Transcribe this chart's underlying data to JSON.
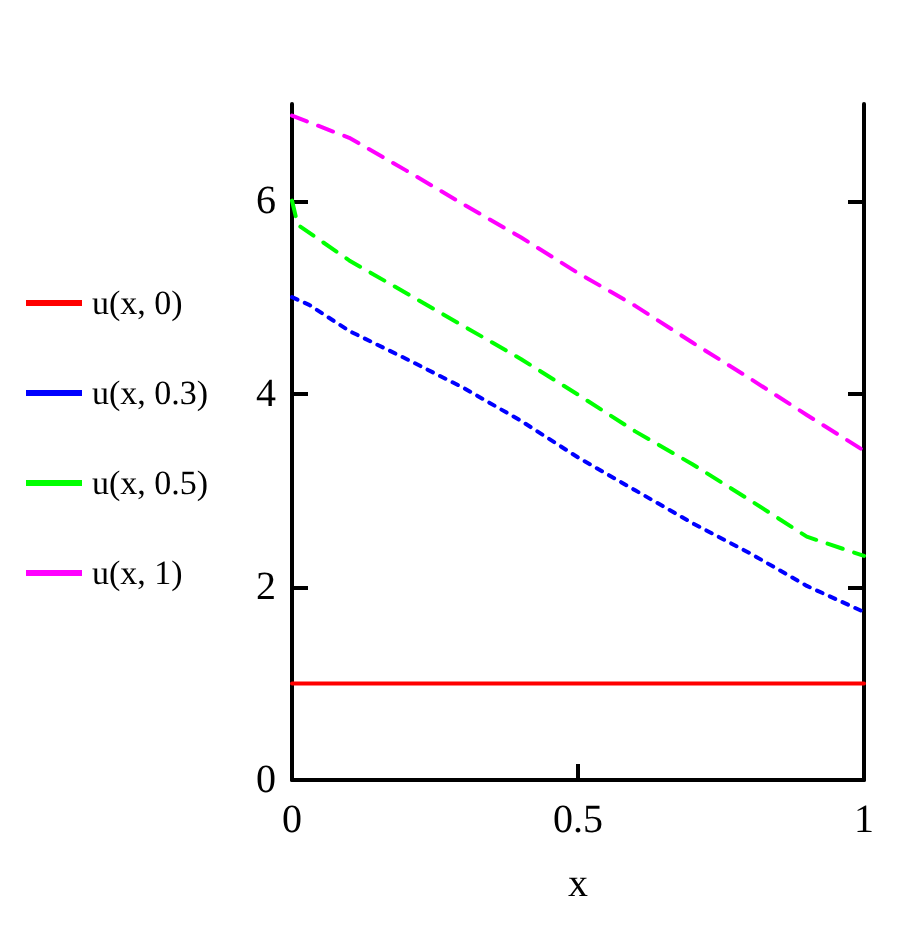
{
  "chart_data": {
    "type": "line",
    "xlabel": "x",
    "xlim": [
      0,
      1
    ],
    "xticks": [
      0,
      0.5,
      1
    ],
    "ylim": [
      0,
      7
    ],
    "yticks": [
      0,
      2,
      4,
      6
    ],
    "grid": false,
    "legend": "left",
    "marker": "none",
    "series": [
      {
        "name": "u(x, 0)",
        "color": "#ff0000",
        "line_style": "solid",
        "x": [
          0,
          1
        ],
        "values": [
          1,
          1
        ]
      },
      {
        "name": "u(x, 0.3)",
        "color": "#0000ff",
        "line_style": "dotted",
        "x": [
          0,
          0.03,
          0.1,
          0.2,
          0.3,
          0.4,
          0.5,
          0.6,
          0.7,
          0.8,
          0.9,
          1
        ],
        "values": [
          5.0,
          4.92,
          4.65,
          4.36,
          4.06,
          3.72,
          3.34,
          3.0,
          2.66,
          2.35,
          2.01,
          1.74
        ]
      },
      {
        "name": "u(x, 0.5)",
        "color": "#00ff00",
        "line_style": "dashed",
        "x": [
          0,
          0.01,
          0.1,
          0.2,
          0.3,
          0.4,
          0.5,
          0.6,
          0.7,
          0.8,
          0.9,
          1
        ],
        "values": [
          6.0,
          5.75,
          5.38,
          5.04,
          4.7,
          4.36,
          3.99,
          3.61,
          3.27,
          2.9,
          2.52,
          2.32
        ]
      },
      {
        "name": "u(x, 1)",
        "color": "#ff00ff",
        "line_style": "dashed",
        "x": [
          0,
          0.1,
          0.2,
          0.3,
          0.4,
          0.5,
          0.6,
          0.7,
          0.8,
          0.9,
          1
        ],
        "values": [
          6.88,
          6.65,
          6.31,
          5.96,
          5.62,
          5.25,
          4.91,
          4.53,
          4.16,
          3.78,
          3.41
        ]
      }
    ]
  }
}
